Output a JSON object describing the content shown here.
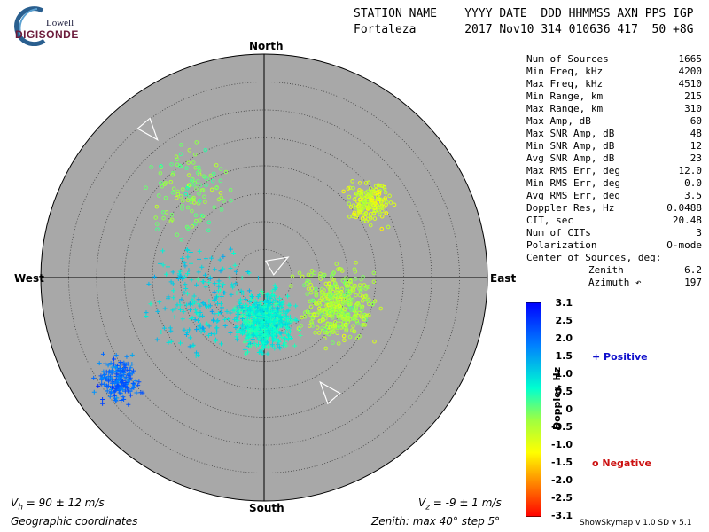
{
  "logo": {
    "line1": "Lowell",
    "line2": "DIGISONDE"
  },
  "header": {
    "labels": "STATION NAME    YYYY DATE  DDD HHMMSS AXN PPS IGP",
    "values": "Fortaleza       2017 Nov10 314 010636 417  50 +8G"
  },
  "stats": [
    {
      "label": "Num of Sources",
      "value": "1665"
    },
    {
      "label": "Min Freq, kHz",
      "value": "4200"
    },
    {
      "label": "Max Freq, kHz",
      "value": "4510"
    },
    {
      "label": "Min Range, km",
      "value": "215"
    },
    {
      "label": "Max Range, km",
      "value": "310"
    },
    {
      "label": "Max Amp, dB",
      "value": "60"
    },
    {
      "label": "Max SNR Amp, dB",
      "value": "48"
    },
    {
      "label": "Min SNR Amp, dB",
      "value": "12"
    },
    {
      "label": "Avg SNR Amp, dB",
      "value": "23"
    },
    {
      "label": "Max RMS Err, deg",
      "value": "12.0"
    },
    {
      "label": "Min RMS Err, deg",
      "value": "0.0"
    },
    {
      "label": "Avg RMS Err, deg",
      "value": "3.5"
    },
    {
      "label": "Doppler Res, Hz",
      "value": "0.0488"
    },
    {
      "label": "CIT, sec",
      "value": "20.48"
    },
    {
      "label": "Num of CITs",
      "value": "3"
    },
    {
      "label": "Polarization",
      "value": "O-mode"
    }
  ],
  "center": {
    "label": "Center of Sources, deg:",
    "zenith_label": "Zenith",
    "zenith_value": "6.2",
    "azimuth_label": "Azimuth",
    "azimuth_value": "197"
  },
  "compass": {
    "north": "North",
    "south": "South",
    "east": "East",
    "west": "West"
  },
  "footer": {
    "vh": "V",
    "vh_sub": "h",
    "vh_val": " = 90 ± 12 m/s",
    "vz": "V",
    "vz_sub": "z",
    "vz_val": " = -9 ± 1 m/s",
    "coords": "Geographic coordinates",
    "zenith": "Zenith: max 40°  step 5°",
    "version": "ShowSkymap v 1.0  SD v 5.1"
  },
  "colorbar": {
    "title": "Doppler, Hz",
    "ticks": [
      "3.1",
      "2.5",
      "2.0",
      "1.5",
      "1.0",
      "0.5",
      "0",
      "-0.5",
      "-1.0",
      "-1.5",
      "-2.0",
      "-2.5",
      "-3.1"
    ],
    "positive_label": "Positive",
    "negative_label": "Negative",
    "positive_color": "#1010cc",
    "negative_color": "#cc1010"
  },
  "chart_data": {
    "type": "scatter",
    "coordinate_system": "polar",
    "zenith_max_deg": 40,
    "zenith_step_deg": 5,
    "doppler_range_hz": [
      -3.1,
      3.1
    ],
    "background": "#a8a8a8",
    "clusters": [
      {
        "marker": "plus",
        "center_zenith_deg": 32,
        "center_azimuth_deg": 235,
        "spread_deg": 3,
        "doppler_hz": 2.1,
        "count": 180
      },
      {
        "marker": "plus",
        "center_zenith_deg": 8,
        "center_azimuth_deg": 180,
        "spread_deg": 4,
        "doppler_hz": 0.7,
        "count": 600
      },
      {
        "marker": "circle",
        "center_zenith_deg": 14,
        "center_azimuth_deg": 110,
        "spread_deg": 5,
        "doppler_hz": -0.4,
        "count": 400
      },
      {
        "marker": "circle",
        "center_zenith_deg": 23,
        "center_azimuth_deg": 55,
        "spread_deg": 3,
        "doppler_hz": -0.8,
        "count": 160
      },
      {
        "marker": "circle",
        "center_zenith_deg": 20,
        "center_azimuth_deg": 320,
        "spread_deg": 6,
        "doppler_hz": -0.1,
        "count": 120
      },
      {
        "marker": "plus",
        "center_zenith_deg": 12,
        "center_azimuth_deg": 250,
        "spread_deg": 7,
        "doppler_hz": 1.0,
        "count": 200
      }
    ],
    "velocity_arrows": [
      {
        "zenith_deg": 35,
        "azimuth_deg": 322,
        "direction_deg": 140
      },
      {
        "zenith_deg": 2,
        "azimuth_deg": 30,
        "direction_deg": 60
      },
      {
        "zenith_deg": 25,
        "azimuth_deg": 150,
        "direction_deg": 320
      }
    ]
  }
}
